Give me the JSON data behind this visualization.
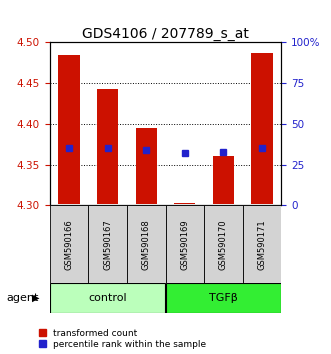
{
  "title": "GDS4106 / 207789_s_at",
  "samples": [
    "GSM590166",
    "GSM590167",
    "GSM590168",
    "GSM590169",
    "GSM590170",
    "GSM590171"
  ],
  "bar_bottom": [
    4.302,
    4.302,
    4.302,
    4.302,
    4.302,
    4.302
  ],
  "bar_top": [
    4.485,
    4.443,
    4.395,
    4.303,
    4.36,
    4.487
  ],
  "blue_y": [
    4.37,
    4.37,
    4.368,
    4.364,
    4.365,
    4.37
  ],
  "bar_color": "#cc1100",
  "blue_color": "#2222cc",
  "ylim_left": [
    4.3,
    4.5
  ],
  "ylim_right": [
    0,
    100
  ],
  "yticks_left": [
    4.3,
    4.35,
    4.4,
    4.45,
    4.5
  ],
  "yticks_right": [
    0,
    25,
    50,
    75,
    100
  ],
  "ytick_labels_right": [
    "0",
    "25",
    "50",
    "75",
    "100%"
  ],
  "control_samples": [
    0,
    1,
    2
  ],
  "tgfb_samples": [
    3,
    4,
    5
  ],
  "control_color": "#bbffbb",
  "tgfb_color": "#33ee33",
  "group_label_control": "control",
  "group_label_tgfb": "TGFβ",
  "agent_label": "agent",
  "legend_red": "transformed count",
  "legend_blue": "percentile rank within the sample",
  "bar_width": 0.55,
  "title_fontsize": 10,
  "tick_fontsize": 7.5,
  "label_fontsize": 7.5
}
